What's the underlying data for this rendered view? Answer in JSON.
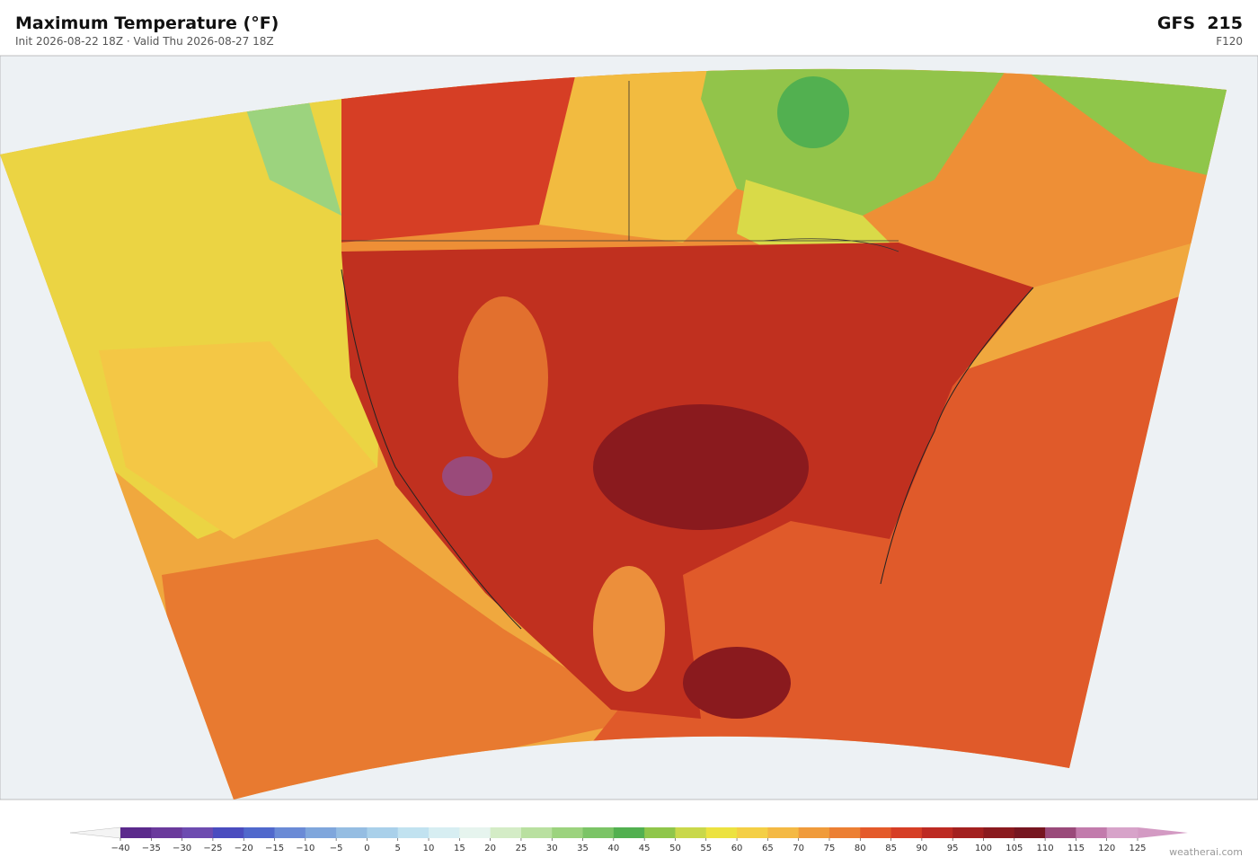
{
  "header": {
    "title": "Maximum Temperature  (°F)",
    "subtitle": "Init 2026-08-22 18Z  ·  Valid Thu 2026-08-27 18Z",
    "model": "GFS  215",
    "lead": "F120"
  },
  "colorbar": {
    "ticks": [
      {
        "value": -40,
        "label": "−40"
      },
      {
        "value": -35,
        "label": "−35"
      },
      {
        "value": -30,
        "label": "−30"
      },
      {
        "value": -25,
        "label": "−25"
      },
      {
        "value": -20,
        "label": "−20"
      },
      {
        "value": -15,
        "label": "−15"
      },
      {
        "value": -10,
        "label": "−10"
      },
      {
        "value": -5,
        "label": "−5"
      },
      0,
      5,
      10,
      15,
      20,
      25,
      30,
      35,
      40,
      45,
      50,
      55,
      60,
      65,
      70,
      75,
      80,
      85,
      90,
      95,
      100,
      105,
      110,
      115,
      120,
      125
    ],
    "colors": [
      "#5b2a8c",
      "#6a3a9c",
      "#6d4bb0",
      "#4a4cbf",
      "#5068cc",
      "#6a8ad6",
      "#7fa6dc",
      "#95bde2",
      "#a9d0ea",
      "#c1e2f0",
      "#d7eef2",
      "#e6f4ee",
      "#d4ecc6",
      "#b9e0a0",
      "#9cd37e",
      "#7bc466",
      "#52b050",
      "#8fc64a",
      "#c9d84a",
      "#ece240",
      "#f4cf45",
      "#f4b944",
      "#f09b3b",
      "#ec7f33",
      "#e45a2a",
      "#d63e25",
      "#bd2a22",
      "#a3201f",
      "#8a1a1e",
      "#761620",
      "#9a4a7a",
      "#c27bac",
      "#d7a3c9"
    ],
    "under_color": "#f4f4f4",
    "over_color": "#d39ac3"
  },
  "credit": "weatherai.com"
}
